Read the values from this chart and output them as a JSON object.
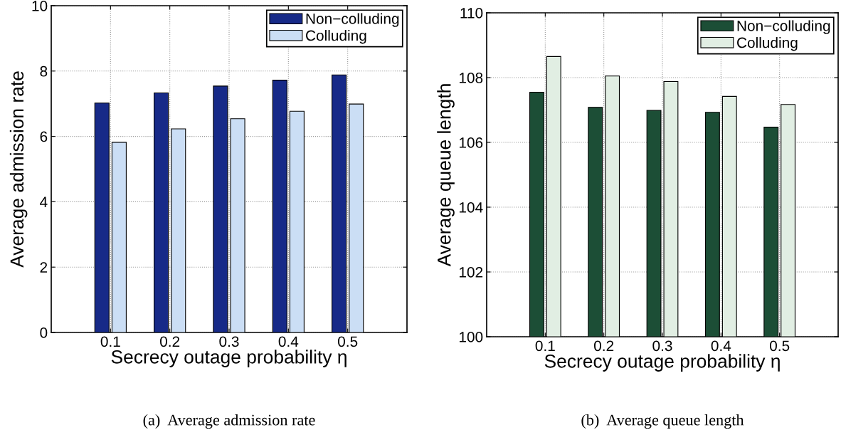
{
  "chart_data": [
    {
      "type": "bar",
      "title": "(a)  Average admission rate",
      "xlabel": "Secrecy outage probability η",
      "ylabel": "Average admission rate",
      "categories": [
        "0.1",
        "0.2",
        "0.3",
        "0.4",
        "0.5"
      ],
      "series": [
        {
          "name": "Non−colluding",
          "color": "#172a88",
          "values": [
            7.02,
            7.33,
            7.54,
            7.72,
            7.88
          ]
        },
        {
          "name": "Colluding",
          "color": "#cbdef5",
          "values": [
            5.82,
            6.23,
            6.54,
            6.77,
            6.99
          ]
        }
      ],
      "ylim": [
        0,
        10
      ],
      "yticks": [
        0,
        2,
        4,
        6,
        8,
        10
      ],
      "grid": true,
      "legend": "top right"
    },
    {
      "type": "bar",
      "title": "(b)  Average queue length",
      "xlabel": "Secrecy outage probability η",
      "ylabel": "Average queue length",
      "categories": [
        "0.1",
        "0.2",
        "0.3",
        "0.4",
        "0.5"
      ],
      "series": [
        {
          "name": "Non−colluding",
          "color": "#1c4e36",
          "values": [
            107.55,
            107.08,
            106.99,
            106.93,
            106.47
          ]
        },
        {
          "name": "Colluding",
          "color": "#e1eee3",
          "values": [
            108.65,
            108.05,
            107.88,
            107.42,
            107.17
          ]
        }
      ],
      "ylim": [
        100,
        110
      ],
      "yticks": [
        100,
        102,
        104,
        106,
        108,
        110
      ],
      "grid": true,
      "legend": "top right"
    }
  ]
}
